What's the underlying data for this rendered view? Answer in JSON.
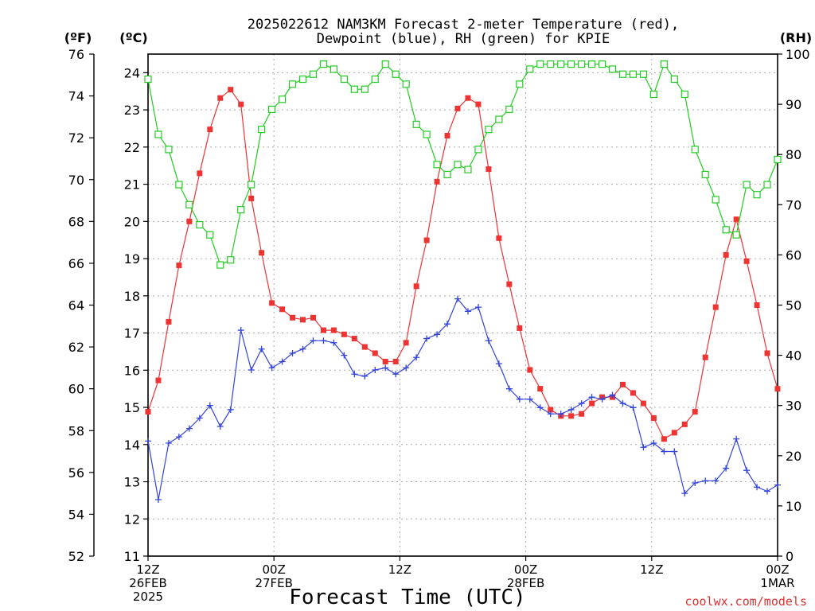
{
  "chart_data": {
    "type": "line",
    "title_line1": "2025022612 NAM3KM Forecast 2-meter Temperature (red),",
    "title_line2": "Dewpoint (blue), RH (green) for KPIE",
    "xlabel": "Forecast Time (UTC)",
    "axis_titles": {
      "f": "(ºF)",
      "c": "(ºC)",
      "rh": "(RH)"
    },
    "watermark": "coolwx.com/models",
    "x_range_hours": [
      0,
      60
    ],
    "x_ticks": [
      {
        "hour": 0,
        "l1": "12Z",
        "l2": "26FEB",
        "l3": "2025"
      },
      {
        "hour": 12,
        "l1": "00Z",
        "l2": "27FEB",
        "l3": ""
      },
      {
        "hour": 24,
        "l1": "12Z",
        "l2": "",
        "l3": ""
      },
      {
        "hour": 36,
        "l1": "00Z",
        "l2": "28FEB",
        "l3": ""
      },
      {
        "hour": 48,
        "l1": "12Z",
        "l2": "",
        "l3": ""
      },
      {
        "hour": 60,
        "l1": "00Z",
        "l2": "1MAR",
        "l3": ""
      }
    ],
    "y_left_f": {
      "range": [
        52,
        76
      ],
      "ticks": [
        "52",
        "54",
        "56",
        "58",
        "60",
        "62",
        "64",
        "66",
        "68",
        "70",
        "72",
        "74",
        "76"
      ]
    },
    "y_left_c": {
      "range": [
        11,
        24.5
      ],
      "ticks": [
        "11",
        "12",
        "13",
        "14",
        "15",
        "16",
        "17",
        "18",
        "19",
        "20",
        "21",
        "22",
        "23",
        "24"
      ]
    },
    "y_right_rh": {
      "range": [
        0,
        100
      ],
      "ticks": [
        "0",
        "10",
        "20",
        "30",
        "40",
        "50",
        "60",
        "70",
        "80",
        "90",
        "100"
      ]
    },
    "grid": true,
    "series": [
      {
        "name": "Temperature",
        "unit": "degF",
        "color": "#ee3333",
        "marker": "filled-square",
        "values": [
          58.9,
          60.4,
          63.2,
          65.9,
          68.0,
          70.3,
          72.4,
          73.9,
          74.3,
          73.6,
          69.1,
          66.5,
          64.1,
          63.8,
          63.4,
          63.3,
          63.4,
          62.8,
          62.8,
          62.6,
          62.4,
          62.0,
          61.7,
          61.3,
          61.3,
          62.2,
          64.9,
          67.1,
          69.9,
          72.1,
          73.4,
          73.9,
          73.6,
          70.5,
          67.2,
          65.0,
          62.9,
          60.9,
          60.0,
          59.0,
          58.7,
          58.7,
          58.8,
          59.3,
          59.6,
          59.6,
          60.2,
          59.8,
          59.3,
          58.6,
          57.6,
          57.9,
          58.3,
          58.9,
          61.5,
          63.9,
          66.4,
          68.1,
          66.1,
          64.0,
          61.7,
          60.0
        ],
        "labelled_points": []
      },
      {
        "name": "Dewpoint",
        "unit": "degF",
        "color": "#3344dd",
        "marker": "plus",
        "values": [
          57.5,
          54.7,
          57.4,
          57.7,
          58.1,
          58.6,
          59.2,
          58.2,
          59.0,
          62.8,
          60.9,
          61.9,
          61.0,
          61.3,
          61.7,
          61.9,
          62.3,
          62.3,
          62.2,
          61.6,
          60.7,
          60.6,
          60.9,
          61.0,
          60.7,
          61.0,
          61.5,
          62.4,
          62.6,
          63.1,
          64.3,
          63.7,
          63.9,
          62.3,
          61.2,
          60.0,
          59.5,
          59.5,
          59.1,
          58.8,
          58.8,
          59.0,
          59.3,
          59.6,
          59.5,
          59.7,
          59.3,
          59.1,
          57.2,
          57.4,
          57.0,
          57.0,
          55.0,
          55.5,
          55.6,
          55.6,
          56.2,
          57.6,
          56.1,
          55.3,
          55.1,
          55.4
        ],
        "labelled_points": []
      },
      {
        "name": "RH",
        "unit": "percent",
        "color": "#22cc22",
        "marker": "open-square",
        "values": [
          95,
          84,
          81,
          74,
          70,
          66,
          64,
          58,
          59,
          69,
          74,
          85,
          89,
          91,
          94,
          95,
          96,
          98,
          97,
          95,
          93,
          93,
          95,
          98,
          96,
          94,
          86,
          84,
          78,
          76,
          78,
          77,
          81,
          85,
          87,
          89,
          94,
          97,
          98,
          98,
          98,
          98,
          98,
          98,
          98,
          97,
          96,
          96,
          96,
          92,
          98,
          95,
          92,
          81,
          76,
          71,
          65,
          64,
          74,
          72,
          74,
          79
        ],
        "labelled_points": []
      }
    ]
  }
}
